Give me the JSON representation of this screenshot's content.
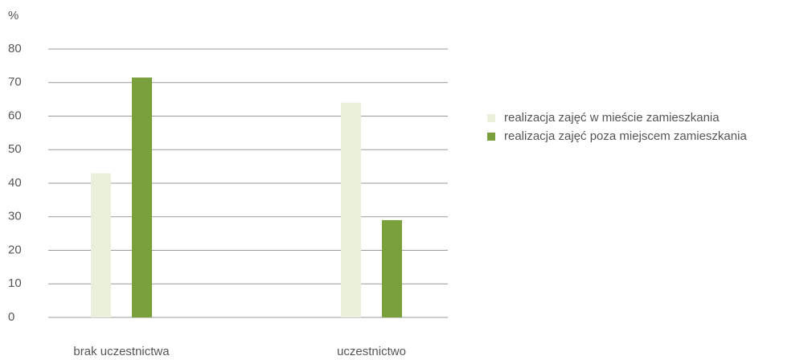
{
  "chart_data": {
    "type": "bar",
    "y_label": "%",
    "categories": [
      "brak uczestnictwa",
      "uczestnictwo"
    ],
    "series": [
      {
        "name": "realizacja zajęć w mieście zamieszkania",
        "color": "#e9efda",
        "values": [
          43,
          64
        ]
      },
      {
        "name": "realizacja zajęć poza miejscem zamieszkania",
        "color": "#7a9f3d",
        "values": [
          71.5,
          29
        ]
      }
    ],
    "ylim": [
      0,
      80
    ],
    "yticks": [
      0,
      10,
      20,
      30,
      40,
      50,
      60,
      70,
      80
    ],
    "grid": true,
    "legend": "right"
  }
}
